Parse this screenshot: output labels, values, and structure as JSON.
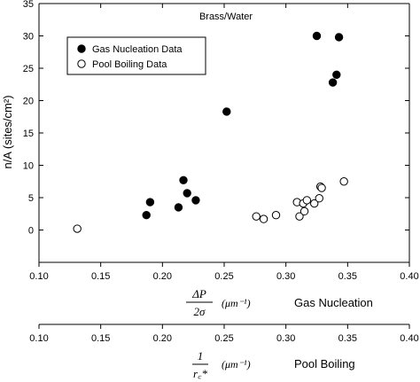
{
  "chart_data": {
    "type": "scatter",
    "title": "Brass/Water",
    "ylabel": "n/A (sites/cm²)",
    "ylim": [
      -5,
      35
    ],
    "yticks": [
      0,
      5,
      10,
      15,
      20,
      25,
      30,
      35
    ],
    "ytick_labels": [
      "0",
      "5",
      "10",
      "15",
      "20",
      "25",
      "30",
      "35"
    ],
    "xlim": [
      0.1,
      0.4
    ],
    "xticks": [
      0.1,
      0.15,
      0.2,
      0.25,
      0.3,
      0.35,
      0.4
    ],
    "xtick_labels": [
      "0.10",
      "0.15",
      "0.20",
      "0.25",
      "0.30",
      "0.35",
      "0.40"
    ],
    "grid": false,
    "legend_position": "upper-left",
    "xaxes": [
      {
        "formula_num": "ΔP",
        "formula_den": "2σ",
        "unit": "(μm⁻¹)",
        "label": "Gas Nucleation"
      },
      {
        "formula_num": "1",
        "formula_den": "r꜀*",
        "unit": "(μm⁻¹)",
        "label": "Pool Boiling"
      }
    ],
    "series": [
      {
        "name": "Gas Nucleation Data",
        "marker": "filled-circle",
        "color": "#000000",
        "points": [
          {
            "x": 0.187,
            "y": 2.3
          },
          {
            "x": 0.19,
            "y": 4.3
          },
          {
            "x": 0.213,
            "y": 3.5
          },
          {
            "x": 0.217,
            "y": 7.7
          },
          {
            "x": 0.22,
            "y": 5.7
          },
          {
            "x": 0.227,
            "y": 4.6
          },
          {
            "x": 0.252,
            "y": 18.3
          },
          {
            "x": 0.325,
            "y": 30.0
          },
          {
            "x": 0.338,
            "y": 22.8
          },
          {
            "x": 0.341,
            "y": 24.0
          },
          {
            "x": 0.343,
            "y": 29.8
          }
        ]
      },
      {
        "name": "Pool Boiling Data",
        "marker": "open-circle",
        "color": "#000000",
        "points": [
          {
            "x": 0.131,
            "y": 0.2
          },
          {
            "x": 0.276,
            "y": 2.1
          },
          {
            "x": 0.282,
            "y": 1.7
          },
          {
            "x": 0.292,
            "y": 2.3
          },
          {
            "x": 0.309,
            "y": 4.3
          },
          {
            "x": 0.311,
            "y": 2.1
          },
          {
            "x": 0.314,
            "y": 4.1
          },
          {
            "x": 0.315,
            "y": 2.9
          },
          {
            "x": 0.317,
            "y": 4.6
          },
          {
            "x": 0.323,
            "y": 4.1
          },
          {
            "x": 0.327,
            "y": 4.9
          },
          {
            "x": 0.328,
            "y": 6.7
          },
          {
            "x": 0.329,
            "y": 6.5
          },
          {
            "x": 0.347,
            "y": 7.5
          }
        ]
      }
    ]
  }
}
